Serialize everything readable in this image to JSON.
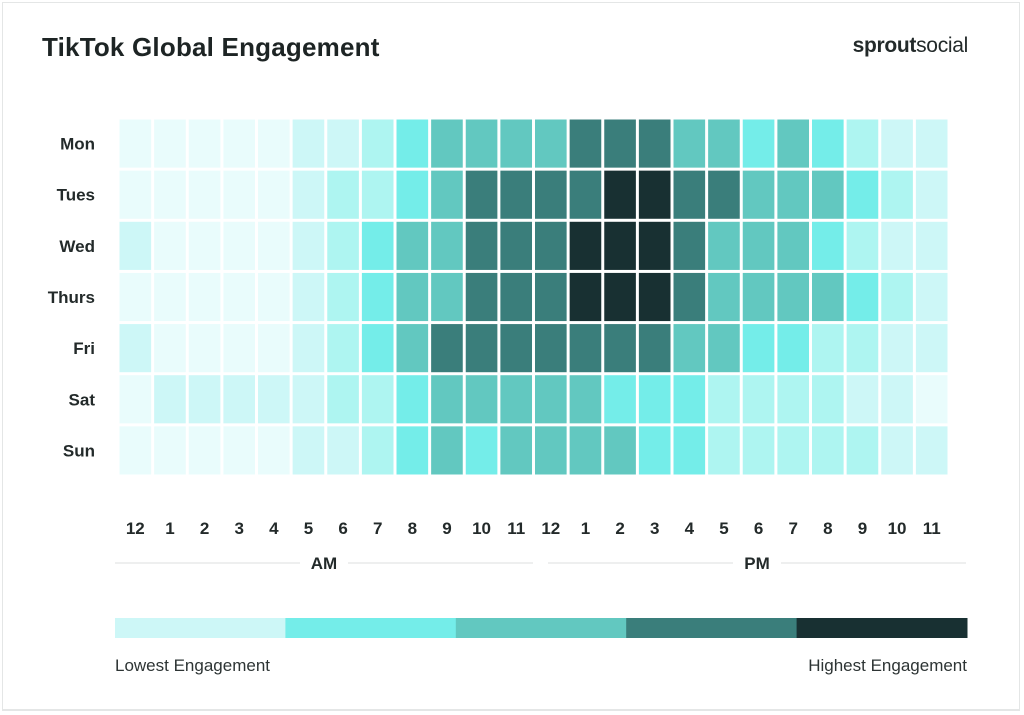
{
  "header": {
    "title": "TikTok Global Engagement",
    "brand_bold": "sprout",
    "brand_light": "social"
  },
  "legend": {
    "low_label": "Lowest Engagement",
    "high_label": "Highest Engagement",
    "colors": [
      "#cdf7f7",
      "#74ede9",
      "#62c8c0",
      "#3a7e7b",
      "#183032"
    ]
  },
  "palette": [
    "#e9fcfc",
    "#cdf7f7",
    "#aef5f1",
    "#74ede9",
    "#62c8c0",
    "#3a7e7b",
    "#183032"
  ],
  "chart_data": {
    "type": "heatmap",
    "title": "TikTok Global Engagement",
    "rows": [
      "Mon",
      "Tues",
      "Wed",
      "Thurs",
      "Fri",
      "Sat",
      "Sun"
    ],
    "columns": [
      "12",
      "1",
      "2",
      "3",
      "4",
      "5",
      "6",
      "7",
      "8",
      "9",
      "10",
      "11",
      "12",
      "1",
      "2",
      "3",
      "4",
      "5",
      "6",
      "7",
      "8",
      "9",
      "10",
      "11"
    ],
    "column_groups": [
      {
        "label": "AM",
        "start": 0,
        "end": 11
      },
      {
        "label": "PM",
        "start": 12,
        "end": 23
      }
    ],
    "value_scale": "engagement level 0 (lowest) to 6 (highest)",
    "values": [
      [
        0,
        0,
        0,
        0,
        0,
        1,
        1,
        2,
        3,
        4,
        4,
        4,
        4,
        5,
        5,
        5,
        4,
        4,
        3,
        4,
        3,
        2,
        1,
        1
      ],
      [
        0,
        0,
        0,
        0,
        0,
        1,
        2,
        2,
        3,
        4,
        5,
        5,
        5,
        5,
        6,
        6,
        5,
        5,
        4,
        4,
        4,
        3,
        2,
        1
      ],
      [
        1,
        0,
        0,
        0,
        0,
        1,
        2,
        3,
        4,
        4,
        5,
        5,
        5,
        6,
        6,
        6,
        5,
        4,
        4,
        4,
        3,
        2,
        1,
        1
      ],
      [
        0,
        0,
        0,
        0,
        0,
        1,
        2,
        3,
        4,
        4,
        5,
        5,
        5,
        6,
        6,
        6,
        5,
        4,
        4,
        4,
        4,
        3,
        2,
        1
      ],
      [
        1,
        0,
        0,
        0,
        0,
        1,
        2,
        3,
        4,
        5,
        5,
        5,
        5,
        5,
        5,
        5,
        4,
        4,
        3,
        3,
        2,
        2,
        1,
        1
      ],
      [
        0,
        1,
        1,
        1,
        1,
        1,
        2,
        2,
        3,
        4,
        4,
        4,
        4,
        4,
        3,
        3,
        3,
        2,
        2,
        2,
        2,
        1,
        1,
        0
      ],
      [
        0,
        0,
        0,
        0,
        0,
        1,
        1,
        2,
        3,
        4,
        3,
        4,
        4,
        4,
        4,
        3,
        3,
        2,
        2,
        2,
        2,
        2,
        1,
        1
      ]
    ],
    "legend": {
      "low": "Lowest Engagement",
      "high": "Highest Engagement",
      "position": "bottom"
    }
  }
}
